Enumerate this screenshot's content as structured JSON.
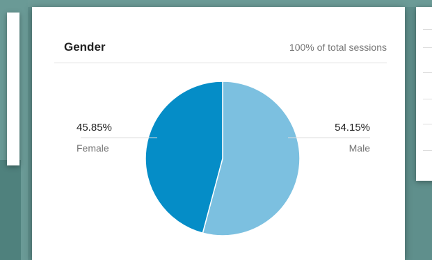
{
  "card": {
    "title": "Gender",
    "subtitle": "100% of total sessions"
  },
  "chart_data": {
    "type": "pie",
    "title": "Gender",
    "subtitle": "100% of total sessions",
    "slices": [
      {
        "label": "Female",
        "percent_label": "45.85%",
        "value": 45.85,
        "color": "#058dc7"
      },
      {
        "label": "Male",
        "percent_label": "54.15%",
        "value": 54.15,
        "color": "#7cc0e0"
      }
    ],
    "legend": "side-labels"
  }
}
